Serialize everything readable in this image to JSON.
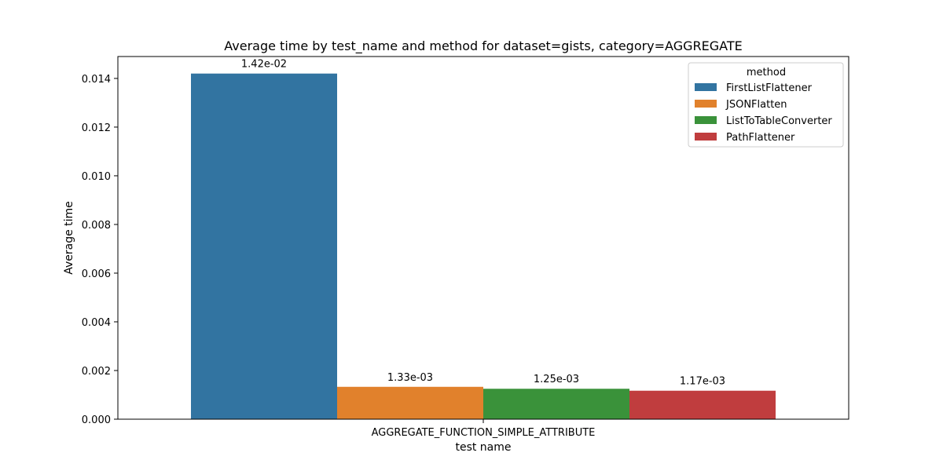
{
  "chart_data": {
    "type": "bar",
    "title": "Average time by test_name and method for dataset=gists, category=AGGREGATE",
    "xlabel": "test name",
    "ylabel": "Average time",
    "categories": [
      "AGGREGATE_FUNCTION_SIMPLE_ATTRIBUTE"
    ],
    "ylim": [
      0,
      0.0149
    ],
    "yticks": [
      0.0,
      0.002,
      0.004,
      0.006,
      0.008,
      0.01,
      0.012,
      0.014
    ],
    "ytick_labels": [
      "0.000",
      "0.002",
      "0.004",
      "0.006",
      "0.008",
      "0.010",
      "0.012",
      "0.014"
    ],
    "grid": false,
    "legend": {
      "title": "method",
      "position": "top-right"
    },
    "series": [
      {
        "name": "FirstListFlattener",
        "values": [
          0.0142
        ],
        "label": "1.42e-02",
        "color": "#3274a1"
      },
      {
        "name": "JSONFlatten",
        "values": [
          0.00133
        ],
        "label": "1.33e-03",
        "color": "#e1812c"
      },
      {
        "name": "ListToTableConverter",
        "values": [
          0.00125
        ],
        "label": "1.25e-03",
        "color": "#3a923a"
      },
      {
        "name": "PathFlattener",
        "values": [
          0.00117
        ],
        "label": "1.17e-03",
        "color": "#c03d3e"
      }
    ]
  }
}
